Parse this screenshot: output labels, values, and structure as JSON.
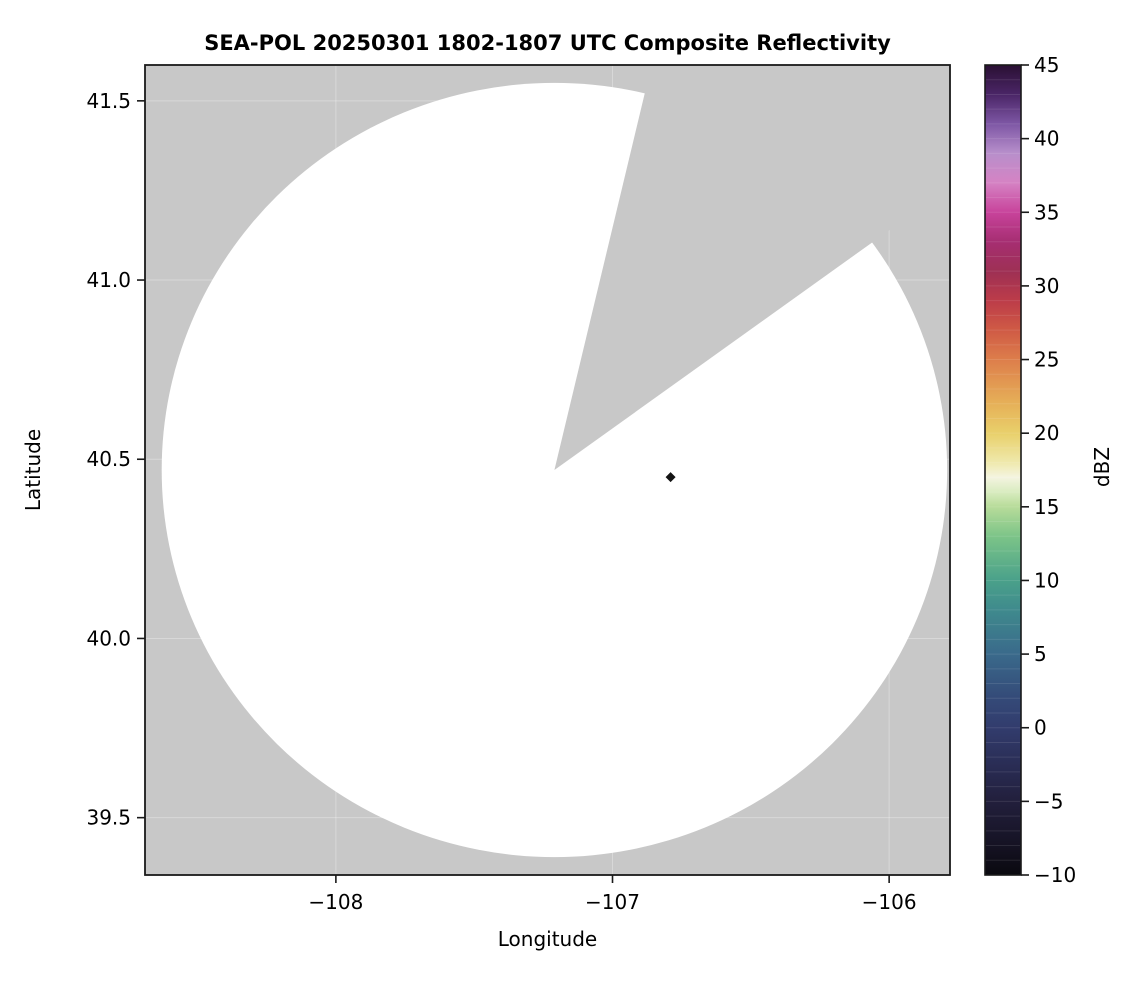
{
  "chart_data": {
    "type": "heatmap",
    "subtype": "radar-composite-reflectivity-map",
    "title": "SEA-POL 20250301 1802-1807 UTC Composite Reflectivity",
    "xlabel": "Longitude",
    "ylabel": "Latitude",
    "xlim": [
      -108.69,
      -105.78
    ],
    "ylim": [
      39.34,
      41.6
    ],
    "xticks": [
      -108,
      -107,
      -106
    ],
    "xtick_labels": [
      "−108",
      "−107",
      "−106"
    ],
    "yticks": [
      39.5,
      40.0,
      40.5,
      41.0,
      41.5
    ],
    "ytick_labels": [
      "39.5",
      "40.0",
      "40.5",
      "41.0",
      "41.5"
    ],
    "background_color": "#c8c8c8",
    "grid": {
      "visible": true,
      "color": "#ffffff",
      "opacity": 0.3
    },
    "coverage": {
      "description": "White circular radar coverage area (no echoes) over gray masked background; a gray blocked-sector wedge of missing data extends from the radar toward the north-northeast",
      "center_lon": -107.21,
      "center_lat": 40.47,
      "radius_deg_lat": 1.08,
      "gap_azimuth_start_deg": 13.3,
      "gap_azimuth_end_deg": 54.0,
      "fill_color": "#ffffff"
    },
    "markers": [
      {
        "lon": -106.79,
        "lat": 40.45,
        "shape": "diamond",
        "color": "#141414"
      }
    ],
    "colorbar": {
      "label": "dBZ",
      "min": -10,
      "max": 45,
      "ticks": [
        -10,
        -5,
        0,
        5,
        10,
        15,
        20,
        25,
        30,
        35,
        40,
        45
      ],
      "tick_labels": [
        "−10",
        "−5",
        "0",
        "5",
        "10",
        "15",
        "20",
        "25",
        "30",
        "35",
        "40",
        "45"
      ],
      "stops": [
        {
          "pos": 0.0,
          "color": "#0a090f"
        },
        {
          "pos": 0.036,
          "color": "#151223"
        },
        {
          "pos": 0.091,
          "color": "#221f3c"
        },
        {
          "pos": 0.127,
          "color": "#282a50"
        },
        {
          "pos": 0.182,
          "color": "#323c6d"
        },
        {
          "pos": 0.218,
          "color": "#344a78"
        },
        {
          "pos": 0.273,
          "color": "#3a6a8b"
        },
        {
          "pos": 0.327,
          "color": "#3f8a8d"
        },
        {
          "pos": 0.364,
          "color": "#4aa18a"
        },
        {
          "pos": 0.418,
          "color": "#7cc488"
        },
        {
          "pos": 0.455,
          "color": "#b8dc9a"
        },
        {
          "pos": 0.473,
          "color": "#d9ecc0"
        },
        {
          "pos": 0.491,
          "color": "#f4f4e0"
        },
        {
          "pos": 0.509,
          "color": "#efe9ad"
        },
        {
          "pos": 0.545,
          "color": "#e9d06b"
        },
        {
          "pos": 0.582,
          "color": "#e6b058"
        },
        {
          "pos": 0.636,
          "color": "#dd7e4b"
        },
        {
          "pos": 0.673,
          "color": "#cf5a45"
        },
        {
          "pos": 0.709,
          "color": "#bc3c49"
        },
        {
          "pos": 0.745,
          "color": "#9e3054"
        },
        {
          "pos": 0.782,
          "color": "#a62e72"
        },
        {
          "pos": 0.818,
          "color": "#c8439b"
        },
        {
          "pos": 0.855,
          "color": "#d583c4"
        },
        {
          "pos": 0.891,
          "color": "#b88fcb"
        },
        {
          "pos": 0.927,
          "color": "#7e57a5"
        },
        {
          "pos": 0.964,
          "color": "#4a2566"
        },
        {
          "pos": 1.0,
          "color": "#2a1033"
        }
      ]
    }
  }
}
